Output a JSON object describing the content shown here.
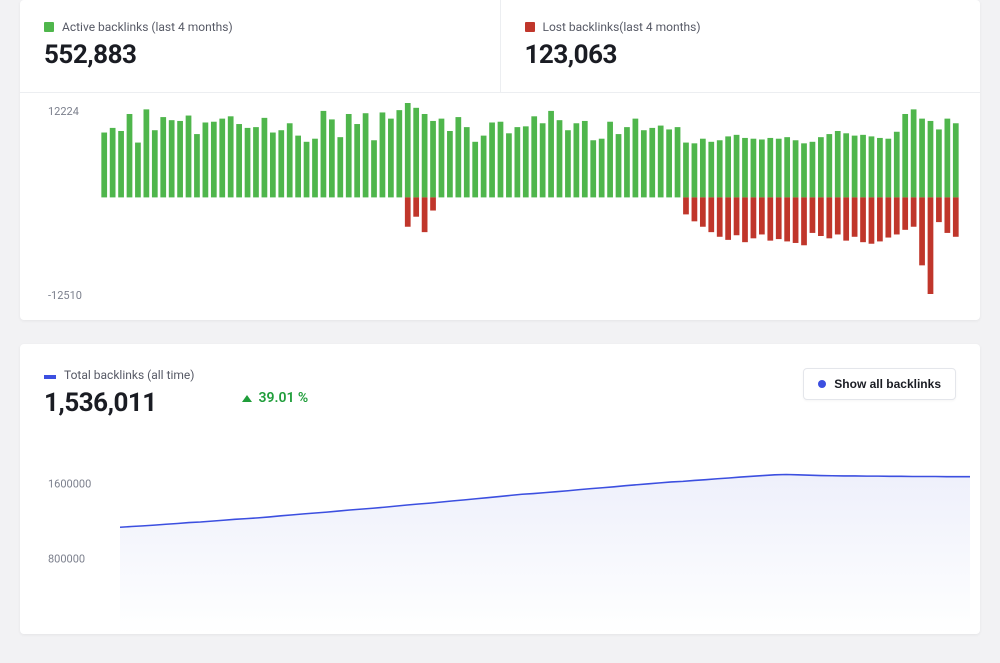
{
  "colors": {
    "active": "#4fb64c",
    "lost": "#c0362b",
    "total": "#3c4fe0",
    "delta_up": "#1f9d3a",
    "text_primary": "#1a1c23",
    "text_secondary": "#575a66",
    "axis_label": "#7b7f8c",
    "card_bg": "#ffffff",
    "page_bg": "#f2f2f4",
    "divider": "#eceef1",
    "area_fill_top": "#eef0fb",
    "area_fill_bottom": "#ffffff"
  },
  "top": {
    "active_label": "Active backlinks (last 4 months)",
    "active_value": "552,883",
    "lost_label": "Lost backlinks(last 4 months)",
    "lost_value": "123,063",
    "chart": {
      "type": "bar-diverging",
      "y_max": 12224,
      "y_min": -12510,
      "y_tick_top_label": "12224",
      "y_tick_bottom_label": "-12510",
      "bar_gap_ratio": 0.32,
      "active_color": "#4fb64c",
      "lost_color": "#c0362b",
      "label_fontsize": 11,
      "active_series": [
        8400,
        9000,
        8600,
        10800,
        7100,
        11400,
        8700,
        10400,
        10000,
        9900,
        10600,
        8200,
        9700,
        9800,
        10200,
        10500,
        9500,
        9000,
        9100,
        10300,
        8400,
        8700,
        9600,
        8000,
        7200,
        7600,
        11200,
        10100,
        7800,
        10800,
        9500,
        10900,
        7400,
        11000,
        10200,
        11300,
        12224,
        11600,
        10800,
        9900,
        10200,
        8600,
        10400,
        9100,
        7200,
        8000,
        9700,
        9800,
        8300,
        9100,
        9200,
        10500,
        9600,
        11200,
        10000,
        8700,
        9600,
        9900,
        7400,
        7600,
        9800,
        8200,
        9100,
        10200,
        8700,
        9000,
        9300,
        8800,
        9100,
        7100,
        7000,
        7600,
        7200,
        7400,
        7900,
        8100,
        7700,
        7600,
        7500,
        7700,
        7600,
        7800,
        7400,
        7000,
        7200,
        7800,
        8200,
        8600,
        8300,
        8000,
        8100,
        7900,
        7700,
        7600,
        8500,
        10800,
        11400,
        10200,
        9900,
        8800,
        10200,
        9600
      ],
      "lost_series": [
        0,
        0,
        0,
        0,
        0,
        0,
        0,
        0,
        0,
        0,
        0,
        0,
        0,
        0,
        0,
        0,
        0,
        0,
        0,
        0,
        0,
        0,
        0,
        0,
        0,
        0,
        0,
        0,
        0,
        0,
        0,
        0,
        0,
        0,
        0,
        0,
        -3800,
        -2500,
        -4500,
        -1700,
        0,
        0,
        0,
        0,
        0,
        0,
        0,
        0,
        0,
        0,
        0,
        0,
        0,
        0,
        0,
        0,
        0,
        0,
        0,
        0,
        0,
        0,
        0,
        0,
        0,
        0,
        0,
        0,
        0,
        -2200,
        -3100,
        -3800,
        -4500,
        -5100,
        -5500,
        -4900,
        -5800,
        -5300,
        -4800,
        -5600,
        -5400,
        -5700,
        -5900,
        -6200,
        -4600,
        -5000,
        -5300,
        -4800,
        -5600,
        -5100,
        -5800,
        -6000,
        -5700,
        -5200,
        -4800,
        -4200,
        -3800,
        -8800,
        -12510,
        -3200,
        -4600,
        -5100
      ]
    }
  },
  "bottom": {
    "total_label": "Total backlinks (all time)",
    "total_value": "1,536,011",
    "delta_pct": "39.01 %",
    "delta_direction": "up",
    "show_all_label": "Show all backlinks",
    "chart": {
      "type": "area",
      "line_color": "#3c4fe0",
      "line_width": 1.5,
      "fill_top": "#eef0fb",
      "fill_bottom": "#ffffff",
      "y_ticks": [
        1600000,
        800000
      ],
      "y_tick_labels": [
        "1600000",
        "800000"
      ],
      "y_min": 0,
      "y_max": 2200000,
      "label_fontsize": 11,
      "series": [
        1140000,
        1148000,
        1155000,
        1163000,
        1172000,
        1180000,
        1190000,
        1196000,
        1205000,
        1215000,
        1225000,
        1232000,
        1240000,
        1250000,
        1262000,
        1272000,
        1283000,
        1292000,
        1302000,
        1313000,
        1324000,
        1334000,
        1343000,
        1354000,
        1366000,
        1378000,
        1388000,
        1398000,
        1410000,
        1422000,
        1432000,
        1444000,
        1456000,
        1468000,
        1480000,
        1492000,
        1500000,
        1510000,
        1520000,
        1530000,
        1542000,
        1553000,
        1562000,
        1572000,
        1584000,
        1594000,
        1604000,
        1614000,
        1624000,
        1630000,
        1640000,
        1648000,
        1658000,
        1666000,
        1676000,
        1684000,
        1692000,
        1700000,
        1703000,
        1700000,
        1696000,
        1692000,
        1690000,
        1688000,
        1688000,
        1686000,
        1686000,
        1684000,
        1684000,
        1682000,
        1682000,
        1682000,
        1680000,
        1680000,
        1680000
      ]
    }
  }
}
